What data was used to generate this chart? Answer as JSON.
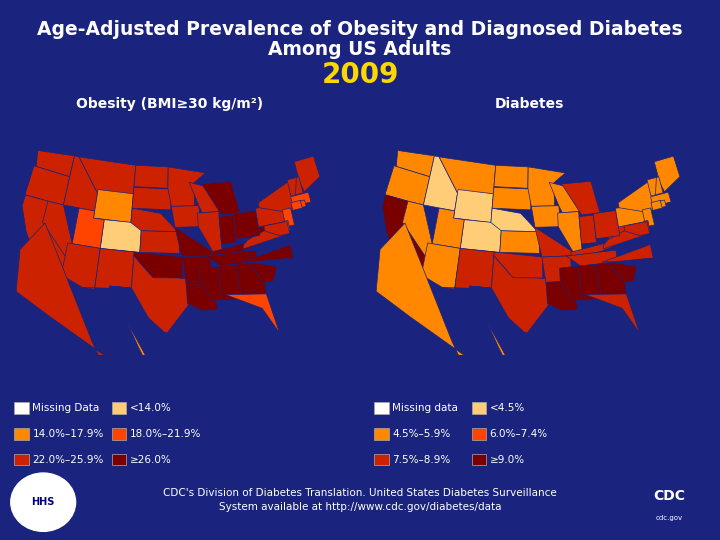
{
  "title_line1": "Age-Adjusted Prevalence of Obesity and Diagnosed Diabetes",
  "title_line2": "Among US Adults",
  "year": "2009",
  "subtitle_obesity": "Obesity (BMI≥30 kg/m²)",
  "subtitle_diabetes": "Diabetes",
  "background_color": "#1a237e",
  "title_color": "#ffffff",
  "year_color": "#ffd700",
  "subtitle_color": "#ffffff",
  "footer_text": "CDC's Division of Diabetes Translation. United States Diabetes Surveillance\nSystem available at http://www.cdc.gov/diabetes/data",
  "obesity_legend": [
    {
      "label": "Missing Data",
      "color": "#ffffff"
    },
    {
      "label": "14.0%–17.9%",
      "color": "#ff8800"
    },
    {
      "label": "22.0%–25.9%",
      "color": "#cc2200"
    },
    {
      "label": "<14.0%",
      "color": "#ffcc77"
    },
    {
      "label": "18.0%–21.9%",
      "color": "#ff4400"
    },
    {
      "label": "≥26.0%",
      "color": "#7a0000"
    }
  ],
  "diabetes_legend": [
    {
      "label": "Missing data",
      "color": "#ffffff"
    },
    {
      "label": "4.5%–5.9%",
      "color": "#ff8800"
    },
    {
      "label": "7.5%–8.9%",
      "color": "#cc2200"
    },
    {
      "label": "<4.5%",
      "color": "#ffcc77"
    },
    {
      "label": "6.0%–7.4%",
      "color": "#ff4400"
    },
    {
      "label": "≥9.0%",
      "color": "#7a0000"
    }
  ],
  "obesity_colors": {
    "WA": "#cc2200",
    "OR": "#cc2200",
    "CA": "#cc2200",
    "NV": "#cc2200",
    "ID": "#cc2200",
    "MT": "#cc2200",
    "WY": "#ff8800",
    "CO": "#ffcc77",
    "UT": "#ff4400",
    "AZ": "#cc2200",
    "NM": "#cc2200",
    "ND": "#cc2200",
    "SD": "#cc2200",
    "NE": "#cc2200",
    "KS": "#cc2200",
    "TX": "#cc2200",
    "OK": "#7a0000",
    "MN": "#cc2200",
    "IA": "#cc2200",
    "MO": "#7a0000",
    "AR": "#7a0000",
    "LA": "#7a0000",
    "WI": "#cc2200",
    "IL": "#cc2200",
    "MS": "#7a0000",
    "MI": "#7a0000",
    "IN": "#7a0000",
    "KY": "#7a0000",
    "TN": "#7a0000",
    "AL": "#7a0000",
    "OH": "#7a0000",
    "GA": "#7a0000",
    "FL": "#ff4400",
    "SC": "#7a0000",
    "NC": "#7a0000",
    "VA": "#cc2200",
    "WV": "#7a0000",
    "PA": "#cc2200",
    "NY": "#cc2200",
    "MD": "#cc2200",
    "DE": "#ff4400",
    "NJ": "#ff4400",
    "CT": "#ff4400",
    "RI": "#ff4400",
    "MA": "#ff4400",
    "VT": "#cc2200",
    "NH": "#cc2200",
    "ME": "#cc2200",
    "AK": "#cc2200",
    "HI": "#ff8800"
  },
  "diabetes_colors": {
    "WA": "#ff8800",
    "OR": "#ff8800",
    "CA": "#7a0000",
    "NV": "#ff8800",
    "ID": "#ffcc77",
    "MT": "#ff8800",
    "WY": "#ffcc77",
    "CO": "#ffcc77",
    "UT": "#ff8800",
    "AZ": "#ff8800",
    "NM": "#cc2200",
    "ND": "#ff8800",
    "SD": "#ff8800",
    "NE": "#ffcc77",
    "KS": "#ff8800",
    "TX": "#cc2200",
    "OK": "#cc2200",
    "MN": "#ff8800",
    "IA": "#ff8800",
    "MO": "#cc2200",
    "AR": "#cc2200",
    "LA": "#7a0000",
    "WI": "#ff8800",
    "IL": "#ff8800",
    "MS": "#7a0000",
    "MI": "#cc2200",
    "IN": "#cc2200",
    "KY": "#cc2200",
    "TN": "#cc2200",
    "AL": "#7a0000",
    "OH": "#cc2200",
    "GA": "#7a0000",
    "FL": "#cc2200",
    "SC": "#7a0000",
    "NC": "#cc2200",
    "VA": "#cc2200",
    "WV": "#cc2200",
    "PA": "#ff8800",
    "NY": "#ff8800",
    "MD": "#cc2200",
    "DE": "#cc2200",
    "NJ": "#ff8800",
    "CT": "#ff8800",
    "RI": "#ff8800",
    "MA": "#ff8800",
    "VT": "#ff8800",
    "NH": "#ff8800",
    "ME": "#ff8800",
    "AK": "#ff8800",
    "HI": "#ff8800"
  }
}
